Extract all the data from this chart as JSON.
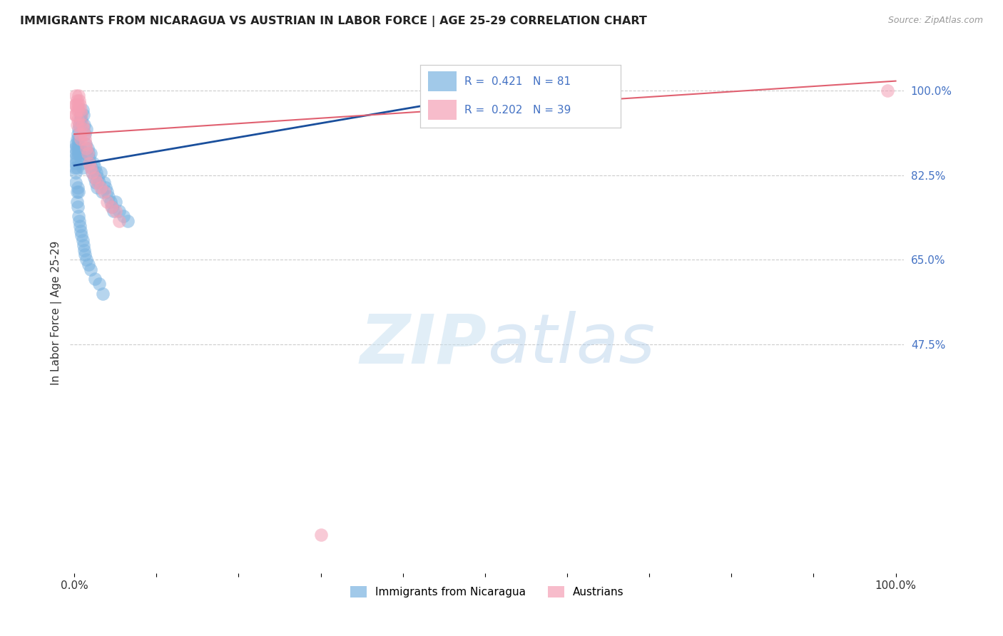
{
  "title": "IMMIGRANTS FROM NICARAGUA VS AUSTRIAN IN LABOR FORCE | AGE 25-29 CORRELATION CHART",
  "source": "Source: ZipAtlas.com",
  "ylabel": "In Labor Force | Age 25-29",
  "blue_R": 0.421,
  "blue_N": 81,
  "pink_R": 0.202,
  "pink_N": 39,
  "blue_color": "#7ab3e0",
  "pink_color": "#f4a0b5",
  "blue_line_color": "#1a4f9c",
  "pink_line_color": "#e06070",
  "r_n_color": "#4472c4",
  "legend_label_blue": "Immigrants from Nicaragua",
  "legend_label_pink": "Austrians",
  "blue_trend": [
    0.0,
    0.845,
    0.6,
    1.02
  ],
  "pink_trend": [
    0.0,
    0.91,
    1.0,
    1.02
  ],
  "ytick_vals": [
    0.475,
    0.65,
    0.825,
    1.0
  ],
  "ytick_labels": [
    "47.5%",
    "65.0%",
    "82.5%",
    "100.0%"
  ],
  "xlim": [
    -0.005,
    1.01
  ],
  "ylim": [
    0.0,
    1.08
  ],
  "blue_scatter_x": [
    0.001,
    0.001,
    0.001,
    0.002,
    0.002,
    0.002,
    0.002,
    0.003,
    0.003,
    0.003,
    0.003,
    0.004,
    0.004,
    0.004,
    0.005,
    0.005,
    0.005,
    0.006,
    0.006,
    0.007,
    0.007,
    0.008,
    0.008,
    0.009,
    0.009,
    0.01,
    0.01,
    0.011,
    0.012,
    0.013,
    0.014,
    0.015,
    0.016,
    0.017,
    0.018,
    0.019,
    0.02,
    0.021,
    0.022,
    0.023,
    0.024,
    0.025,
    0.026,
    0.027,
    0.028,
    0.029,
    0.03,
    0.032,
    0.034,
    0.036,
    0.038,
    0.04,
    0.042,
    0.044,
    0.046,
    0.048,
    0.05,
    0.055,
    0.06,
    0.065,
    0.002,
    0.003,
    0.003,
    0.004,
    0.004,
    0.005,
    0.005,
    0.006,
    0.007,
    0.008,
    0.009,
    0.01,
    0.011,
    0.012,
    0.013,
    0.015,
    0.017,
    0.02,
    0.025,
    0.03,
    0.035
  ],
  "blue_scatter_y": [
    0.88,
    0.86,
    0.84,
    0.89,
    0.87,
    0.85,
    0.83,
    0.9,
    0.88,
    0.86,
    0.84,
    0.91,
    0.89,
    0.87,
    0.92,
    0.9,
    0.88,
    0.93,
    0.87,
    0.94,
    0.88,
    0.95,
    0.86,
    0.94,
    0.85,
    0.96,
    0.84,
    0.95,
    0.93,
    0.91,
    0.89,
    0.92,
    0.88,
    0.87,
    0.86,
    0.85,
    0.87,
    0.84,
    0.83,
    0.85,
    0.82,
    0.84,
    0.81,
    0.83,
    0.8,
    0.82,
    0.81,
    0.83,
    0.79,
    0.81,
    0.8,
    0.79,
    0.78,
    0.77,
    0.76,
    0.75,
    0.77,
    0.75,
    0.74,
    0.73,
    0.81,
    0.79,
    0.77,
    0.8,
    0.76,
    0.79,
    0.74,
    0.73,
    0.72,
    0.71,
    0.7,
    0.69,
    0.68,
    0.67,
    0.66,
    0.65,
    0.64,
    0.63,
    0.61,
    0.6,
    0.58
  ],
  "pink_scatter_x": [
    0.001,
    0.001,
    0.002,
    0.002,
    0.002,
    0.003,
    0.003,
    0.003,
    0.004,
    0.004,
    0.005,
    0.005,
    0.006,
    0.006,
    0.007,
    0.007,
    0.008,
    0.008,
    0.009,
    0.01,
    0.011,
    0.012,
    0.013,
    0.014,
    0.015,
    0.016,
    0.018,
    0.02,
    0.022,
    0.025,
    0.028,
    0.032,
    0.036,
    0.04,
    0.045,
    0.05,
    0.055,
    0.3,
    0.99
  ],
  "pink_scatter_y": [
    0.97,
    0.95,
    0.99,
    0.97,
    0.95,
    0.98,
    0.96,
    0.93,
    0.97,
    0.94,
    0.99,
    0.96,
    0.98,
    0.93,
    0.97,
    0.91,
    0.96,
    0.9,
    0.95,
    0.93,
    0.92,
    0.91,
    0.9,
    0.89,
    0.88,
    0.87,
    0.85,
    0.84,
    0.83,
    0.82,
    0.81,
    0.8,
    0.79,
    0.77,
    0.76,
    0.75,
    0.73,
    0.08,
    1.0
  ]
}
